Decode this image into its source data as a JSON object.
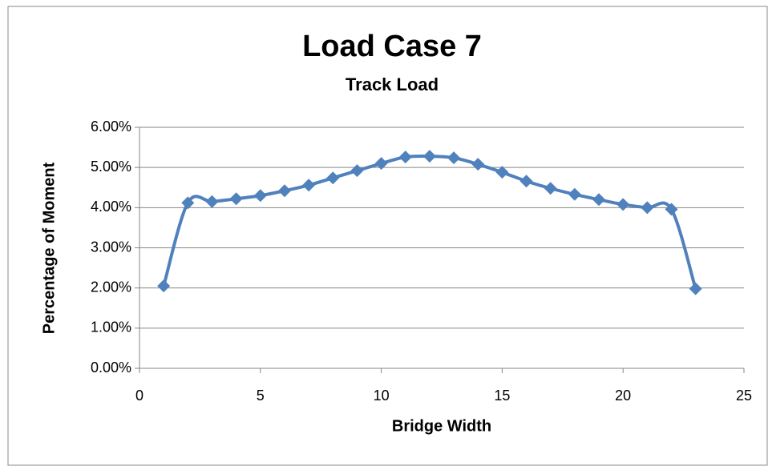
{
  "chart_data": {
    "type": "line",
    "title": "Load Case 7",
    "subtitle": "Track Load",
    "x_label": "Bridge Width",
    "y_label": "Percentage of Moment",
    "x": [
      1,
      2,
      3,
      4,
      5,
      6,
      7,
      8,
      9,
      10,
      11,
      12,
      13,
      14,
      15,
      16,
      17,
      18,
      19,
      20,
      21,
      22,
      23
    ],
    "series": [
      {
        "name": "Track Load",
        "color": "#4f81bd",
        "values": [
          2.05,
          4.12,
          4.15,
          4.22,
          4.3,
          4.42,
          4.56,
          4.74,
          4.92,
          5.1,
          5.26,
          5.28,
          5.24,
          5.08,
          4.88,
          4.66,
          4.48,
          4.33,
          4.2,
          4.08,
          4.0,
          3.96,
          1.98
        ]
      }
    ],
    "xlim": [
      0,
      25
    ],
    "xticks": [
      0,
      5,
      10,
      15,
      20,
      25
    ],
    "ylim": [
      0,
      6
    ],
    "yticks": [
      {
        "value": 0,
        "label": "0.00%"
      },
      {
        "value": 1,
        "label": "1.00%"
      },
      {
        "value": 2,
        "label": "2.00%"
      },
      {
        "value": 3,
        "label": "3.00%"
      },
      {
        "value": 4,
        "label": "4.00%"
      },
      {
        "value": 5,
        "label": "5.00%"
      },
      {
        "value": 6,
        "label": "6.00%"
      }
    ],
    "grid": true,
    "smooth": true
  }
}
